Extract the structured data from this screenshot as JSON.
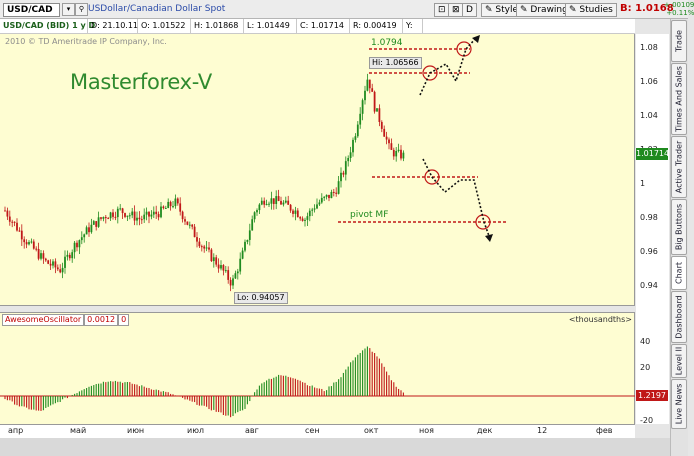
{
  "toolbar": {
    "symbol": "USD/CAD",
    "description": "USDollar/Canadian Dollar Spot",
    "d_button": "D",
    "style_button": "Style",
    "drawings_button": "Drawings",
    "studies_button": "Studies",
    "bid_label": "B: 1.0168"
  },
  "infobar": {
    "title": "USD/CAD (BID) 1 y D",
    "date": "D: 21.10.11",
    "open": "O: 1.01522",
    "high": "H: 1.01868",
    "low": "L: 1.01449",
    "close": "C: 1.01714",
    "range": "R: 0.00419",
    "y": "Y:"
  },
  "top_right_changes": [
    "+.00109",
    "+0.11%"
  ],
  "main_chart": {
    "copyright": "2010 © TD Ameritrade IP Company, Inc.",
    "watermark": "Masterforex-V",
    "hi_label": "Hi: 1.06566",
    "lo_label": "Lo: 0.94057",
    "level_1": "1.0794",
    "pivot_label": "pivot MF",
    "current_price": "1.01714",
    "price_ticks": [
      "1.08",
      "1.06",
      "1.04",
      "1.02",
      "1",
      "0.98",
      "0.96",
      "0.94"
    ]
  },
  "oscillator": {
    "name": "AwesomeOscillator",
    "value": "0.0012",
    "zero": "0",
    "unit": "<thousandths>",
    "ticks": [
      "40",
      "20",
      "-20"
    ],
    "current": "1.2197"
  },
  "time_ticks": [
    "апр",
    "май",
    "июн",
    "июл",
    "авг",
    "сен",
    "окт",
    "ноя",
    "дек",
    "12",
    "фев"
  ],
  "side_tabs": [
    "Trade",
    "Times And Sales",
    "Active Trader",
    "Big Buttons",
    "Chart",
    "Dashboard",
    "Level II",
    "Live News"
  ],
  "colors": {
    "bg": "#fefdd2",
    "up": "#1f8a1f",
    "down": "#c01818",
    "bid": "#c00000",
    "accent": "#2a4aa8"
  }
}
